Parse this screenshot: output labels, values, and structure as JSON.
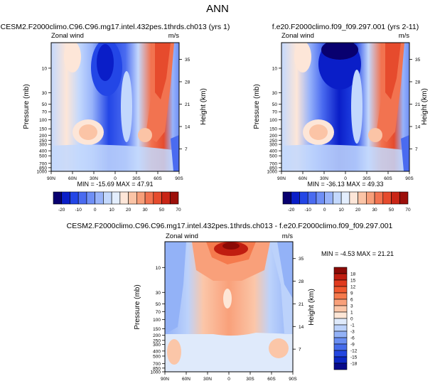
{
  "page_title": "ANN",
  "chart_data": [
    {
      "type": "heatmap",
      "title": "CESM2.F2000climo.C96.C96.mg17.intel.432pes.1thrds.ch013 (yrs 1)",
      "subtitle_left": "Zonal wind",
      "subtitle_right": "m/s",
      "xlabel": "",
      "ylabel": "Pressure (mb)",
      "ylabel_right": "Height (km)",
      "x_ticks": [
        "90N",
        "60N",
        "30N",
        "0",
        "30S",
        "60S",
        "90S"
      ],
      "y_ticks": [
        "10",
        "30",
        "50",
        "70",
        "100",
        "150",
        "200",
        "250",
        "300",
        "400",
        "500",
        "700",
        "850",
        "1000"
      ],
      "y_ticks_right": [
        "35",
        "28",
        "21",
        "14",
        "7"
      ],
      "stats": "MIN = -15.69  MAX = 47.91",
      "colorbar": {
        "labels": [
          "-20",
          "-10",
          "0",
          "10",
          "20",
          "30",
          "50",
          "70"
        ],
        "colors": [
          "#08006f",
          "#0a1ec8",
          "#2346e6",
          "#4a6bf0",
          "#6f8ff6",
          "#98b3fa",
          "#c3d8fd",
          "#e3eefe",
          "#fde6d8",
          "#fbc4a6",
          "#f79f7a",
          "#f27350",
          "#e64b2d",
          "#c92516",
          "#9c0f0a"
        ]
      }
    },
    {
      "type": "heatmap",
      "title": "f.e20.F2000climo.f09_f09.297.001 (yrs 2-11)",
      "subtitle_left": "Zonal wind",
      "subtitle_right": "m/s",
      "xlabel": "",
      "ylabel": "Pressure (mb)",
      "ylabel_right": "Height (km)",
      "x_ticks": [
        "90N",
        "60N",
        "30N",
        "0",
        "30S",
        "60S",
        "90S"
      ],
      "y_ticks": [
        "10",
        "30",
        "50",
        "70",
        "100",
        "150",
        "200",
        "250",
        "300",
        "400",
        "500",
        "700",
        "850",
        "1000"
      ],
      "y_ticks_right": [
        "35",
        "28",
        "21",
        "14",
        "7"
      ],
      "stats": "MIN = -36.13  MAX = 49.33",
      "colorbar": {
        "labels": [
          "-20",
          "-10",
          "0",
          "10",
          "20",
          "30",
          "50",
          "70"
        ],
        "colors": [
          "#08006f",
          "#0a1ec8",
          "#2346e6",
          "#4a6bf0",
          "#6f8ff6",
          "#98b3fa",
          "#c3d8fd",
          "#e3eefe",
          "#fde6d8",
          "#fbc4a6",
          "#f79f7a",
          "#f27350",
          "#e64b2d",
          "#c92516",
          "#9c0f0a"
        ]
      }
    },
    {
      "type": "heatmap",
      "title": "CESM2.F2000climo.C96.C96.mg17.intel.432pes.1thrds.ch013 - f.e20.F2000climo.f09_f09.297.001",
      "subtitle_left": "Zonal wind",
      "subtitle_right": "m/s",
      "xlabel": "",
      "ylabel": "Pressure (mb)",
      "ylabel_right": "Height (km)",
      "x_ticks": [
        "90N",
        "60N",
        "30N",
        "0",
        "30S",
        "60S",
        "90S"
      ],
      "y_ticks": [
        "10",
        "30",
        "50",
        "70",
        "100",
        "150",
        "200",
        "250",
        "300",
        "400",
        "500",
        "700",
        "850",
        "1000"
      ],
      "y_ticks_right": [
        "35",
        "28",
        "21",
        "14",
        "7"
      ],
      "stats": "MIN = -4.53  MAX = 21.21",
      "colorbar": {
        "labels": [
          "18",
          "15",
          "12",
          "9",
          "6",
          "3",
          "1",
          "0",
          "-1",
          "-3",
          "-6",
          "-9",
          "-12",
          "-15",
          "-18"
        ],
        "colors": [
          "#8b0a06",
          "#c01d10",
          "#e03a1e",
          "#f0582f",
          "#f57a4d",
          "#f9a07a",
          "#fbc6a8",
          "#fde6d6",
          "#dfeafb",
          "#bcd2fb",
          "#93b2f7",
          "#6a8ef2",
          "#456bea",
          "#2346e0",
          "#0c27c4",
          "#070a8a"
        ]
      }
    }
  ]
}
